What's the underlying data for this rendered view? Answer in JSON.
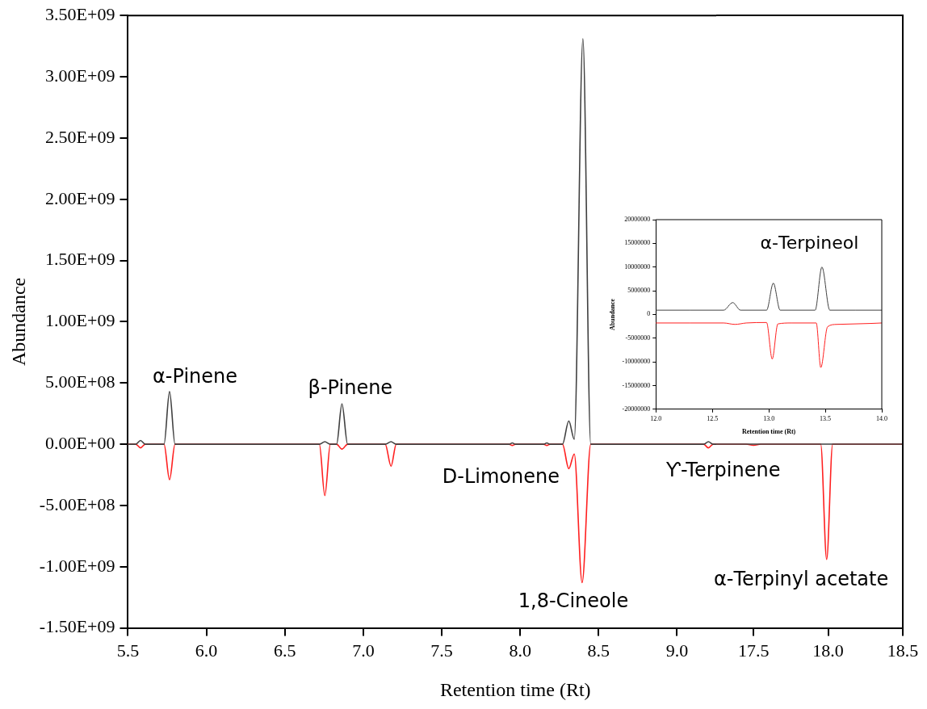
{
  "chart_data": [
    {
      "type": "line",
      "xlabel": "Retention time (Rt)",
      "ylabel": "Abundance",
      "xlim": [
        5.5,
        9.25
      ],
      "xticks": [
        {
          "value": 5.5,
          "label": "5.5"
        },
        {
          "value": 6,
          "label": "6.0"
        },
        {
          "value": 6.5,
          "label": "6.5"
        },
        {
          "value": 7,
          "label": "7.0"
        },
        {
          "value": 7.5,
          "label": "7.5"
        },
        {
          "value": 8,
          "label": "8.0"
        },
        {
          "value": 8.5,
          "label": "8.5"
        },
        {
          "value": 9,
          "label": "9.0"
        }
      ],
      "ylim": [
        -1500000000,
        3500000000
      ],
      "yticks": [
        {
          "value": -1500000000,
          "label": "-1.50E+09"
        },
        {
          "value": -1000000000,
          "label": "-1.00E+09"
        },
        {
          "value": -500000000,
          "label": "-5.00E+08"
        },
        {
          "value": 0,
          "label": "0.00E+00"
        },
        {
          "value": 500000000,
          "label": "5.00E+08"
        },
        {
          "value": 1000000000,
          "label": "1.00E+09"
        },
        {
          "value": 1500000000,
          "label": "1.50E+09"
        },
        {
          "value": 2000000000,
          "label": "2.00E+09"
        },
        {
          "value": 2500000000,
          "label": "2.50E+09"
        },
        {
          "value": 3000000000,
          "label": "3.00E+09"
        },
        {
          "value": 3500000000,
          "label": "3.50E+09"
        }
      ],
      "series": [
        {
          "color": "#404040",
          "x": [
            5.5,
            5.55,
            5.58,
            5.61,
            5.73,
            5.765,
            5.8,
            6.72,
            6.755,
            6.79,
            6.83,
            6.864,
            6.9,
            7.14,
            7.177,
            7.21,
            7.93,
            7.95,
            7.97,
            8.15,
            8.17,
            8.19,
            8.27,
            8.31,
            8.345,
            8.4,
            8.45,
            9.17,
            9.2,
            9.23,
            9.25
          ],
          "values": [
            0,
            0,
            30000000,
            0,
            0,
            430000000,
            0,
            0,
            20000000,
            0,
            0,
            330000000,
            0,
            0,
            20000000,
            0,
            0,
            10000000,
            0,
            0,
            10000000,
            0,
            0,
            190000000,
            40000000,
            3310000000,
            0,
            0,
            20000000,
            0,
            0
          ]
        },
        {
          "color": "#ff2020",
          "x": [
            5.5,
            5.55,
            5.58,
            5.61,
            5.73,
            5.765,
            5.8,
            6.72,
            6.755,
            6.79,
            6.83,
            6.864,
            6.9,
            7.14,
            7.177,
            7.21,
            7.93,
            7.95,
            7.97,
            8.15,
            8.17,
            8.19,
            8.27,
            8.31,
            8.345,
            8.395,
            8.45,
            9.17,
            9.2,
            9.23,
            9.25
          ],
          "values": [
            0,
            0,
            -30000000,
            0,
            0,
            -290000000,
            0,
            0,
            -420000000,
            0,
            0,
            -40000000,
            0,
            0,
            -180000000,
            0,
            0,
            -10000000,
            0,
            0,
            -10000000,
            0,
            0,
            -200000000,
            -80000000,
            -1130000000,
            0,
            0,
            -30000000,
            0,
            0
          ]
        }
      ],
      "annotations": [
        "α-Pinene",
        "β-Pinene",
        "D-Limonene",
        "1,8-Cineole",
        "Ƴ-Terpinene"
      ]
    },
    {
      "type": "line",
      "tick_labels": "x",
      "xlim": [
        17.25,
        18.5
      ],
      "xticks": [
        {
          "value": 17.5,
          "label": "17.5"
        },
        {
          "value": 18,
          "label": "18.0"
        },
        {
          "value": 18.5,
          "label": "18.5"
        }
      ],
      "ylim": [
        -1500000000,
        3500000000
      ],
      "series": [
        {
          "color": "#404040",
          "x": [
            17.25,
            18.5
          ],
          "values": [
            0,
            0
          ]
        },
        {
          "color": "#ff2020",
          "x": [
            17.25,
            17.45,
            17.5,
            17.55,
            17.95,
            17.99,
            18.03,
            18.5
          ],
          "values": [
            0,
            0,
            -10000000,
            0,
            0,
            -940000000,
            0,
            0
          ]
        }
      ],
      "annotations": [
        "α-Terpinyl acetate"
      ]
    },
    {
      "type": "line",
      "xlabel": "Retention time (Rt)",
      "ylabel": "Abundance",
      "xlim": [
        12,
        14
      ],
      "xticks": [
        {
          "value": 12,
          "label": "12.0"
        },
        {
          "value": 12.5,
          "label": "12.5"
        },
        {
          "value": 13,
          "label": "13.0"
        },
        {
          "value": 13.5,
          "label": "13.5"
        },
        {
          "value": 14,
          "label": "14.0"
        }
      ],
      "ylim": [
        -20000000,
        20000000
      ],
      "yticks": [
        -20000000,
        -15000000,
        -10000000,
        -5000000,
        0,
        5000000,
        10000000,
        15000000,
        20000000
      ],
      "series": [
        {
          "color": "#404040",
          "x": [
            12,
            12.6,
            12.68,
            12.75,
            12.98,
            13.04,
            13.1,
            13.41,
            13.47,
            13.54,
            14
          ],
          "values": [
            900000,
            900000,
            2500000,
            900000,
            900000,
            6600000,
            900000,
            900000,
            10000000,
            900000,
            900000
          ]
        },
        {
          "color": "#ff2020",
          "x": [
            12,
            12.6,
            12.7,
            12.8,
            12.98,
            13.03,
            13.08,
            13.2,
            13.42,
            13.46,
            13.52,
            13.6,
            13.9,
            14
          ],
          "values": [
            -1800000,
            -1800000,
            -2100000,
            -1800000,
            -1700000,
            -9400000,
            -2000000,
            -1800000,
            -1800000,
            -11200000,
            -2600000,
            -2100000,
            -1900000,
            -1800000
          ]
        }
      ],
      "annotations": [
        "α-Terpineol"
      ]
    }
  ]
}
